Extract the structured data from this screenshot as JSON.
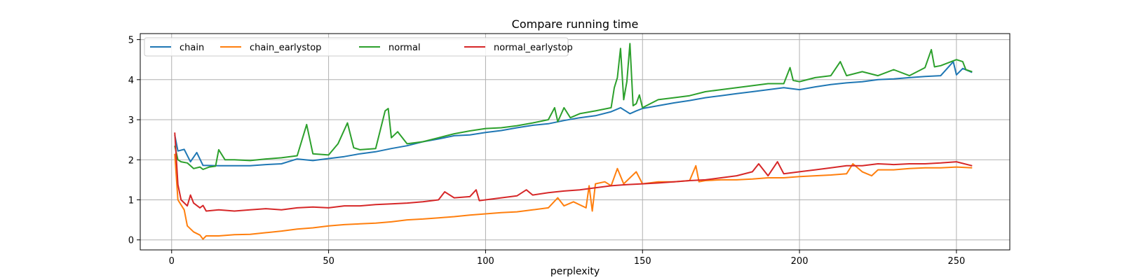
{
  "chart_data": {
    "type": "line",
    "title": "Compare running time",
    "xlabel": "perplexity",
    "ylabel": "",
    "xlim": [
      -10,
      267
    ],
    "ylim": [
      -0.25,
      5.15
    ],
    "xticks": [
      0,
      50,
      100,
      150,
      200,
      250
    ],
    "yticks": [
      0,
      1,
      2,
      3,
      4,
      5
    ],
    "grid": true,
    "legend": {
      "placement": "top-left",
      "columns": 4
    },
    "series": [
      {
        "name": "chain",
        "color": "#1f77b4",
        "points": [
          [
            1,
            2.62
          ],
          [
            2,
            2.22
          ],
          [
            4,
            2.26
          ],
          [
            6,
            1.95
          ],
          [
            8,
            2.18
          ],
          [
            10,
            1.86
          ],
          [
            15,
            1.85
          ],
          [
            20,
            1.85
          ],
          [
            25,
            1.85
          ],
          [
            30,
            1.88
          ],
          [
            35,
            1.9
          ],
          [
            40,
            2.02
          ],
          [
            45,
            1.98
          ],
          [
            50,
            2.03
          ],
          [
            55,
            2.08
          ],
          [
            60,
            2.15
          ],
          [
            65,
            2.2
          ],
          [
            70,
            2.28
          ],
          [
            75,
            2.35
          ],
          [
            80,
            2.45
          ],
          [
            85,
            2.52
          ],
          [
            90,
            2.6
          ],
          [
            95,
            2.62
          ],
          [
            100,
            2.68
          ],
          [
            105,
            2.73
          ],
          [
            110,
            2.8
          ],
          [
            115,
            2.86
          ],
          [
            120,
            2.9
          ],
          [
            125,
            2.98
          ],
          [
            130,
            3.05
          ],
          [
            135,
            3.1
          ],
          [
            140,
            3.2
          ],
          [
            143,
            3.3
          ],
          [
            146,
            3.15
          ],
          [
            148,
            3.22
          ],
          [
            150,
            3.28
          ],
          [
            155,
            3.35
          ],
          [
            160,
            3.42
          ],
          [
            165,
            3.48
          ],
          [
            170,
            3.55
          ],
          [
            175,
            3.6
          ],
          [
            180,
            3.65
          ],
          [
            185,
            3.7
          ],
          [
            190,
            3.75
          ],
          [
            195,
            3.8
          ],
          [
            200,
            3.75
          ],
          [
            205,
            3.82
          ],
          [
            210,
            3.88
          ],
          [
            215,
            3.92
          ],
          [
            220,
            3.95
          ],
          [
            225,
            4.0
          ],
          [
            230,
            4.02
          ],
          [
            235,
            4.05
          ],
          [
            240,
            4.08
          ],
          [
            245,
            4.1
          ],
          [
            249,
            4.45
          ],
          [
            250,
            4.12
          ],
          [
            252,
            4.28
          ],
          [
            255,
            4.18
          ]
        ]
      },
      {
        "name": "chain_earlystop",
        "color": "#ff7f0e",
        "points": [
          [
            1,
            2.15
          ],
          [
            2,
            1.0
          ],
          [
            4,
            0.75
          ],
          [
            5,
            0.35
          ],
          [
            7,
            0.2
          ],
          [
            9,
            0.12
          ],
          [
            10,
            0.02
          ],
          [
            11,
            0.1
          ],
          [
            15,
            0.1
          ],
          [
            20,
            0.13
          ],
          [
            25,
            0.14
          ],
          [
            30,
            0.18
          ],
          [
            35,
            0.22
          ],
          [
            40,
            0.27
          ],
          [
            45,
            0.3
          ],
          [
            50,
            0.35
          ],
          [
            55,
            0.38
          ],
          [
            60,
            0.4
          ],
          [
            65,
            0.42
          ],
          [
            70,
            0.45
          ],
          [
            75,
            0.5
          ],
          [
            80,
            0.52
          ],
          [
            85,
            0.55
          ],
          [
            90,
            0.58
          ],
          [
            95,
            0.62
          ],
          [
            100,
            0.65
          ],
          [
            105,
            0.68
          ],
          [
            110,
            0.7
          ],
          [
            115,
            0.75
          ],
          [
            120,
            0.8
          ],
          [
            123,
            1.05
          ],
          [
            125,
            0.85
          ],
          [
            128,
            0.95
          ],
          [
            132,
            0.8
          ],
          [
            133,
            1.35
          ],
          [
            134,
            0.72
          ],
          [
            135,
            1.4
          ],
          [
            138,
            1.45
          ],
          [
            140,
            1.35
          ],
          [
            142,
            1.78
          ],
          [
            144,
            1.4
          ],
          [
            148,
            1.7
          ],
          [
            150,
            1.4
          ],
          [
            155,
            1.45
          ],
          [
            160,
            1.45
          ],
          [
            165,
            1.48
          ],
          [
            167,
            1.85
          ],
          [
            168,
            1.45
          ],
          [
            170,
            1.48
          ],
          [
            175,
            1.5
          ],
          [
            180,
            1.5
          ],
          [
            185,
            1.52
          ],
          [
            190,
            1.55
          ],
          [
            195,
            1.55
          ],
          [
            200,
            1.58
          ],
          [
            205,
            1.6
          ],
          [
            210,
            1.62
          ],
          [
            215,
            1.65
          ],
          [
            217,
            1.9
          ],
          [
            220,
            1.7
          ],
          [
            223,
            1.6
          ],
          [
            225,
            1.75
          ],
          [
            230,
            1.75
          ],
          [
            235,
            1.78
          ],
          [
            240,
            1.8
          ],
          [
            245,
            1.8
          ],
          [
            250,
            1.82
          ],
          [
            255,
            1.8
          ]
        ]
      },
      {
        "name": "normal",
        "color": "#2ca02c",
        "points": [
          [
            1,
            2.35
          ],
          [
            2,
            2.0
          ],
          [
            3,
            1.95
          ],
          [
            5,
            1.92
          ],
          [
            7,
            1.78
          ],
          [
            9,
            1.82
          ],
          [
            10,
            1.76
          ],
          [
            12,
            1.82
          ],
          [
            14,
            1.84
          ],
          [
            15,
            2.25
          ],
          [
            17,
            2.0
          ],
          [
            20,
            2.0
          ],
          [
            25,
            1.98
          ],
          [
            30,
            2.02
          ],
          [
            35,
            2.05
          ],
          [
            40,
            2.1
          ],
          [
            43,
            2.88
          ],
          [
            45,
            2.15
          ],
          [
            50,
            2.12
          ],
          [
            53,
            2.4
          ],
          [
            56,
            2.92
          ],
          [
            58,
            2.3
          ],
          [
            60,
            2.25
          ],
          [
            65,
            2.28
          ],
          [
            68,
            3.22
          ],
          [
            69,
            3.28
          ],
          [
            70,
            2.55
          ],
          [
            72,
            2.7
          ],
          [
            75,
            2.4
          ],
          [
            80,
            2.45
          ],
          [
            85,
            2.55
          ],
          [
            90,
            2.65
          ],
          [
            95,
            2.72
          ],
          [
            100,
            2.78
          ],
          [
            105,
            2.8
          ],
          [
            110,
            2.85
          ],
          [
            115,
            2.92
          ],
          [
            120,
            3.0
          ],
          [
            122,
            3.3
          ],
          [
            123,
            2.95
          ],
          [
            125,
            3.3
          ],
          [
            127,
            3.05
          ],
          [
            130,
            3.15
          ],
          [
            135,
            3.22
          ],
          [
            140,
            3.3
          ],
          [
            141,
            3.8
          ],
          [
            142,
            4.05
          ],
          [
            143,
            4.78
          ],
          [
            144,
            3.5
          ],
          [
            145,
            3.95
          ],
          [
            146,
            4.9
          ],
          [
            147,
            3.35
          ],
          [
            148,
            3.4
          ],
          [
            149,
            3.62
          ],
          [
            150,
            3.3
          ],
          [
            155,
            3.5
          ],
          [
            160,
            3.55
          ],
          [
            165,
            3.6
          ],
          [
            170,
            3.7
          ],
          [
            175,
            3.75
          ],
          [
            180,
            3.8
          ],
          [
            185,
            3.85
          ],
          [
            190,
            3.9
          ],
          [
            195,
            3.9
          ],
          [
            197,
            4.3
          ],
          [
            198,
            3.98
          ],
          [
            200,
            3.95
          ],
          [
            205,
            4.05
          ],
          [
            210,
            4.1
          ],
          [
            213,
            4.45
          ],
          [
            215,
            4.1
          ],
          [
            220,
            4.2
          ],
          [
            225,
            4.1
          ],
          [
            230,
            4.25
          ],
          [
            235,
            4.1
          ],
          [
            240,
            4.3
          ],
          [
            242,
            4.75
          ],
          [
            243,
            4.32
          ],
          [
            245,
            4.35
          ],
          [
            250,
            4.5
          ],
          [
            252,
            4.45
          ],
          [
            253,
            4.25
          ],
          [
            255,
            4.2
          ]
        ]
      },
      {
        "name": "normal_earlystop",
        "color": "#d62728",
        "points": [
          [
            1,
            2.68
          ],
          [
            2,
            1.38
          ],
          [
            3,
            1.0
          ],
          [
            5,
            0.85
          ],
          [
            6,
            1.12
          ],
          [
            7,
            0.92
          ],
          [
            9,
            0.8
          ],
          [
            10,
            0.86
          ],
          [
            11,
            0.72
          ],
          [
            15,
            0.75
          ],
          [
            20,
            0.72
          ],
          [
            25,
            0.75
          ],
          [
            30,
            0.78
          ],
          [
            35,
            0.75
          ],
          [
            40,
            0.8
          ],
          [
            45,
            0.82
          ],
          [
            50,
            0.8
          ],
          [
            55,
            0.85
          ],
          [
            60,
            0.85
          ],
          [
            65,
            0.88
          ],
          [
            70,
            0.9
          ],
          [
            75,
            0.92
          ],
          [
            80,
            0.95
          ],
          [
            85,
            1.0
          ],
          [
            87,
            1.2
          ],
          [
            90,
            1.05
          ],
          [
            95,
            1.08
          ],
          [
            97,
            1.25
          ],
          [
            98,
            0.98
          ],
          [
            100,
            1.0
          ],
          [
            105,
            1.05
          ],
          [
            110,
            1.1
          ],
          [
            113,
            1.25
          ],
          [
            115,
            1.12
          ],
          [
            120,
            1.18
          ],
          [
            125,
            1.22
          ],
          [
            130,
            1.25
          ],
          [
            135,
            1.3
          ],
          [
            140,
            1.35
          ],
          [
            145,
            1.38
          ],
          [
            150,
            1.4
          ],
          [
            155,
            1.42
          ],
          [
            160,
            1.45
          ],
          [
            165,
            1.48
          ],
          [
            170,
            1.5
          ],
          [
            175,
            1.55
          ],
          [
            180,
            1.6
          ],
          [
            185,
            1.7
          ],
          [
            187,
            1.9
          ],
          [
            190,
            1.6
          ],
          [
            193,
            1.95
          ],
          [
            195,
            1.65
          ],
          [
            200,
            1.7
          ],
          [
            205,
            1.75
          ],
          [
            210,
            1.8
          ],
          [
            215,
            1.85
          ],
          [
            220,
            1.85
          ],
          [
            225,
            1.9
          ],
          [
            230,
            1.88
          ],
          [
            235,
            1.9
          ],
          [
            240,
            1.9
          ],
          [
            245,
            1.92
          ],
          [
            250,
            1.95
          ],
          [
            255,
            1.85
          ]
        ]
      }
    ]
  }
}
